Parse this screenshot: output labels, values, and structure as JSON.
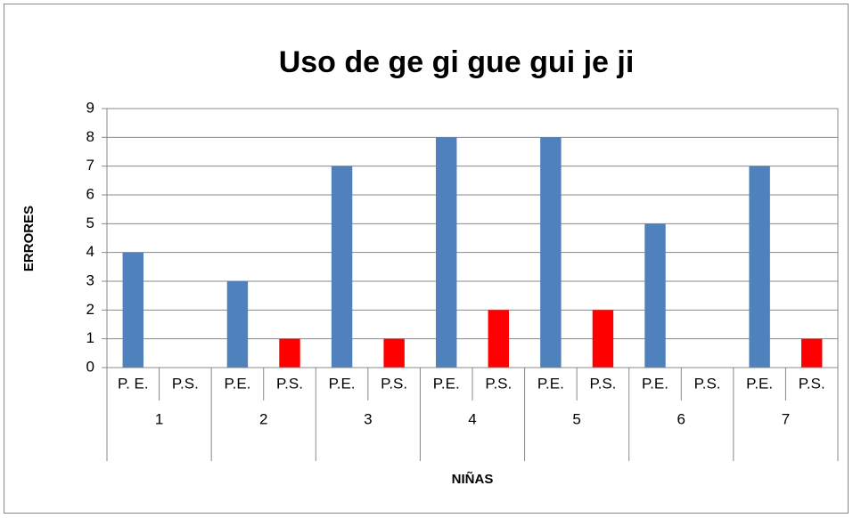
{
  "chart_data": {
    "type": "bar",
    "title": "Uso de ge gi gue gui je ji",
    "x_label": "NIÑAS",
    "y_label": "ERRORES",
    "groups": [
      "1",
      "2",
      "3",
      "4",
      "5",
      "6",
      "7"
    ],
    "categories": [
      "P. E.",
      "P.S.",
      "P.E.",
      "P.S.",
      "P.E.",
      "P.S.",
      "P.E.",
      "P.S.",
      "P.E.",
      "P.S.",
      "P.E.",
      "P.S.",
      "P.E.",
      "P.S."
    ],
    "values": [
      4,
      0,
      3,
      1,
      7,
      1,
      8,
      2,
      8,
      2,
      5,
      0,
      7,
      1
    ],
    "colors": [
      "#4f81bd",
      "#ff0000",
      "#4f81bd",
      "#ff0000",
      "#4f81bd",
      "#ff0000",
      "#4f81bd",
      "#ff0000",
      "#4f81bd",
      "#ff0000",
      "#4f81bd",
      "#ff0000",
      "#4f81bd",
      "#ff0000"
    ],
    "ylim": [
      0,
      9
    ],
    "yticks": [
      0,
      1,
      2,
      3,
      4,
      5,
      6,
      7,
      8,
      9
    ],
    "grid": true
  }
}
